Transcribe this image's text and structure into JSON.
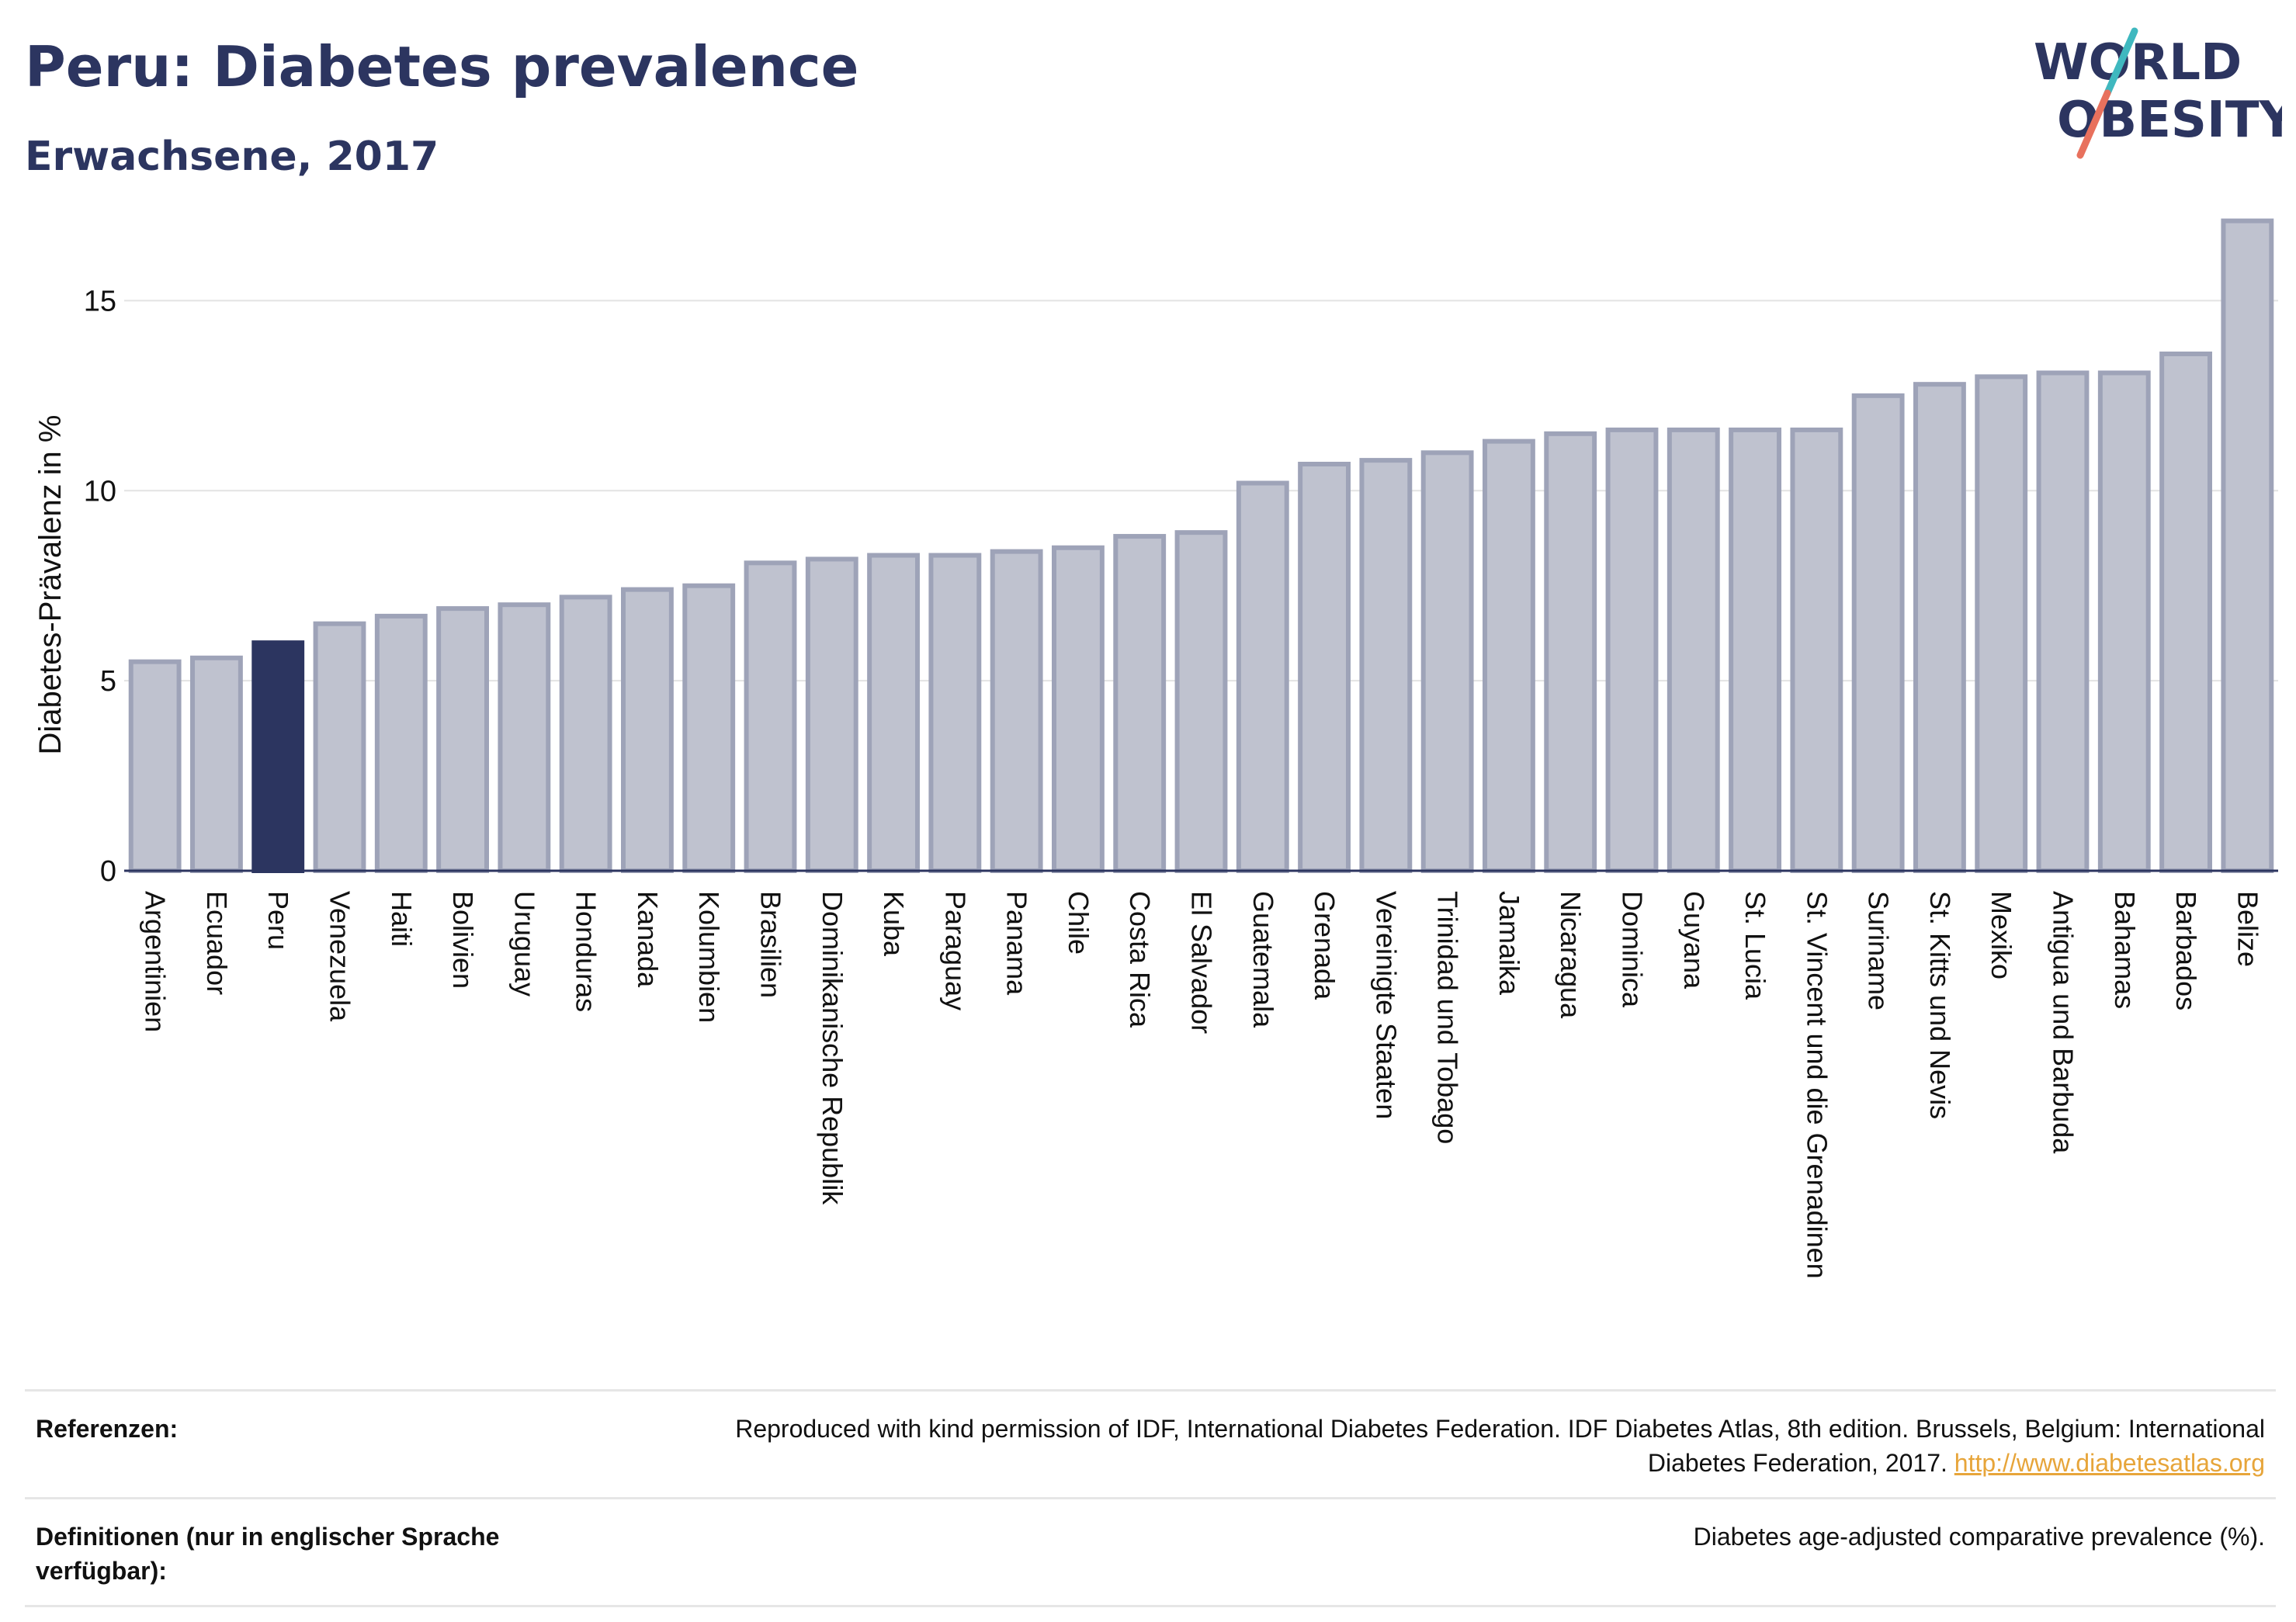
{
  "header": {
    "title": "Peru: Diabetes prevalence",
    "subtitle": "Erwachsene, 2017",
    "logo_line1": "WORLD",
    "logo_line2": "OBESITY"
  },
  "colors": {
    "highlight_bar": "#2c3560",
    "other_bar_fill": "#bfc2cf",
    "other_bar_stroke": "#9ea3b8",
    "title": "#2c3560",
    "logo_teal": "#3fb8bf",
    "logo_coral": "#e8715d",
    "link": "#e7a53a"
  },
  "chart_data": {
    "type": "bar",
    "title": "Peru: Diabetes prevalence",
    "subtitle": "Erwachsene, 2017",
    "ylabel": "Diabetes-Prävalenz in %",
    "xlabel": "",
    "ylim": [
      0,
      17.5
    ],
    "yticks": [
      0,
      5,
      10,
      15
    ],
    "grid": true,
    "highlight": "Peru",
    "categories": [
      "Argentinien",
      "Ecuador",
      "Peru",
      "Venezuela",
      "Haiti",
      "Bolivien",
      "Uruguay",
      "Honduras",
      "Kanada",
      "Kolumbien",
      "Brasilien",
      "Dominikanische Republik",
      "Kuba",
      "Paraguay",
      "Panama",
      "Chile",
      "Costa Rica",
      "El Salvador",
      "Guatemala",
      "Grenada",
      "Vereinigte Staaten",
      "Trinidad und Tobago",
      "Jamaika",
      "Nicaragua",
      "Dominica",
      "Guyana",
      "St. Lucia",
      "St. Vincent und die Grenadinen",
      "Suriname",
      "St. Kitts und Nevis",
      "Mexiko",
      "Antigua und Barbuda",
      "Bahamas",
      "Barbados",
      "Belize"
    ],
    "values": [
      5.5,
      5.6,
      6.0,
      6.5,
      6.7,
      6.9,
      7.0,
      7.2,
      7.4,
      7.5,
      8.1,
      8.2,
      8.3,
      8.3,
      8.4,
      8.5,
      8.8,
      8.9,
      10.2,
      10.7,
      10.8,
      11.0,
      11.3,
      11.5,
      11.6,
      11.6,
      11.6,
      11.6,
      12.5,
      12.8,
      13.0,
      13.1,
      13.1,
      13.6,
      17.1
    ]
  },
  "footer": {
    "ref_label": "Referenzen:",
    "ref_text": "Reproduced with kind permission of IDF, International Diabetes Federation. IDF Diabetes Atlas, 8th edition. Brussels, Belgium: International Diabetes Federation, 2017.",
    "ref_link": "http://www.diabetesatlas.org",
    "def_label": "Definitionen (nur in englischer Sprache verfügbar):",
    "def_text": "Diabetes age-adjusted comparative prevalence (%)."
  }
}
